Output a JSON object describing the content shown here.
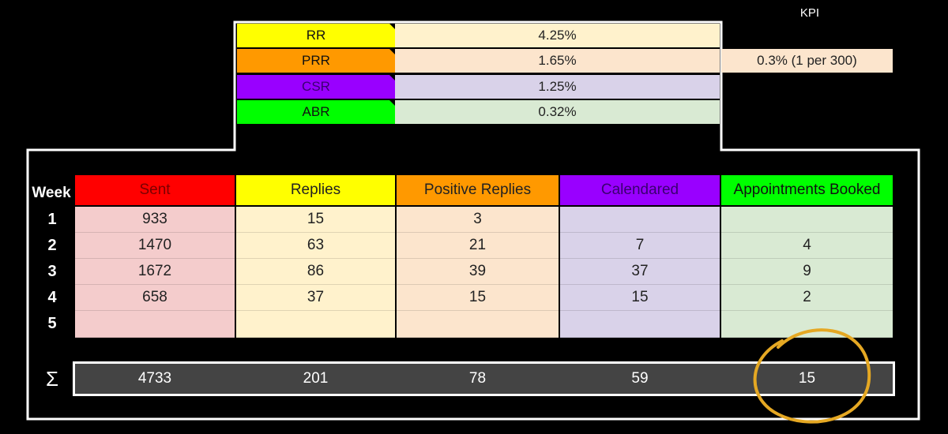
{
  "kpi_label": "KPI",
  "kpi_value": "0.3% (1 per 300)",
  "rates": [
    {
      "label": "RR",
      "value": "4.25%",
      "color": "#ffff00",
      "bg": "#fff2cc",
      "text": "#111"
    },
    {
      "label": "PRR",
      "value": "1.65%",
      "color": "#ff9900",
      "bg": "#fce5cd",
      "text": "#111"
    },
    {
      "label": "CSR",
      "value": "1.25%",
      "color": "#9900ff",
      "bg": "#d9d2e9",
      "text": "#3a0070"
    },
    {
      "label": "ABR",
      "value": "0.32%",
      "color": "#00ff00",
      "bg": "#d9ead3",
      "text": "#111"
    }
  ],
  "table": {
    "week_header": "Week",
    "columns": [
      {
        "label": "Sent",
        "color": "#ff0000",
        "bg": "#f4cccc",
        "text": "#7a0000"
      },
      {
        "label": "Replies",
        "color": "#ffff00",
        "bg": "#fff2cc",
        "text": "#222"
      },
      {
        "label": "Positive Replies",
        "color": "#ff9900",
        "bg": "#fce5cd",
        "text": "#222"
      },
      {
        "label": "Calendared",
        "color": "#9900ff",
        "bg": "#d9d2e9",
        "text": "#3a0070"
      },
      {
        "label": "Appointments Booked",
        "color": "#00ff00",
        "bg": "#d9ead3",
        "text": "#111"
      }
    ],
    "rows": [
      {
        "week": "1",
        "values": [
          "933",
          "15",
          "3",
          "",
          ""
        ]
      },
      {
        "week": "2",
        "values": [
          "1470",
          "63",
          "21",
          "7",
          "4"
        ]
      },
      {
        "week": "3",
        "values": [
          "1672",
          "86",
          "39",
          "37",
          "9"
        ]
      },
      {
        "week": "4",
        "values": [
          "658",
          "37",
          "15",
          "15",
          "2"
        ]
      },
      {
        "week": "5",
        "values": [
          "",
          "",
          "",
          "",
          ""
        ]
      }
    ],
    "sum_symbol": "Σ",
    "totals": [
      "4733",
      "201",
      "78",
      "59",
      "15"
    ]
  },
  "highlight_color": "#e5a823"
}
